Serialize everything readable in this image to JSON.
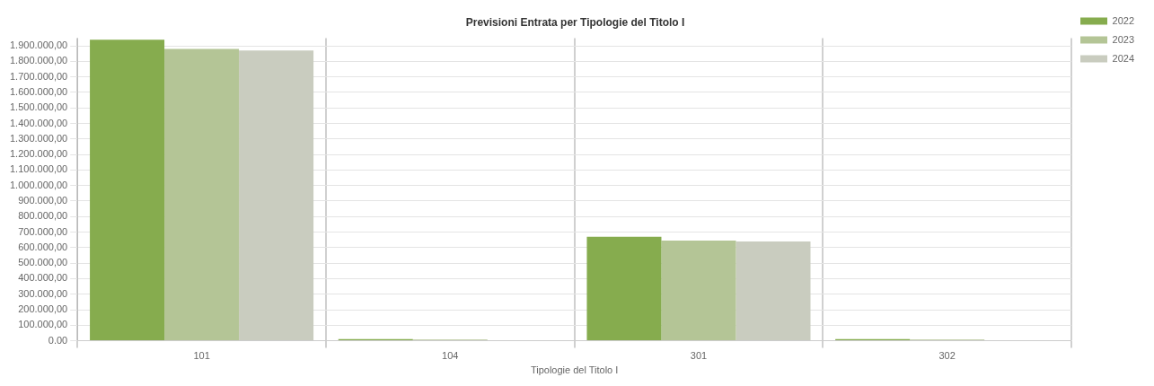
{
  "chart_data": {
    "type": "bar",
    "title": "Previsioni Entrata per Tipologie del Titolo I",
    "xlabel": "Tipologie del Titolo I",
    "categories": [
      "101",
      "104",
      "301",
      "302"
    ],
    "series": [
      {
        "name": "2022",
        "color": "#86ac4e",
        "values": [
          1940000,
          10000,
          670000,
          10000
        ]
      },
      {
        "name": "2023",
        "color": "#b4c596",
        "values": [
          1880000,
          8000,
          645000,
          8000
        ]
      },
      {
        "name": "2024",
        "color": "#c9ccbf",
        "values": [
          1870000,
          null,
          640000,
          null
        ]
      }
    ],
    "ylim": [
      0,
      1950000
    ],
    "yticks": [
      {
        "value": 0,
        "label": "0.00"
      },
      {
        "value": 100000,
        "label": "100.000,00"
      },
      {
        "value": 200000,
        "label": "200.000,00"
      },
      {
        "value": 300000,
        "label": "300.000,00"
      },
      {
        "value": 400000,
        "label": "400.000,00"
      },
      {
        "value": 500000,
        "label": "500.000,00"
      },
      {
        "value": 600000,
        "label": "600.000,00"
      },
      {
        "value": 700000,
        "label": "700.000,00"
      },
      {
        "value": 800000,
        "label": "800.000,00"
      },
      {
        "value": 900000,
        "label": "900.000,00"
      },
      {
        "value": 1000000,
        "label": "1.000.000,00"
      },
      {
        "value": 1100000,
        "label": "1.100.000,00"
      },
      {
        "value": 1200000,
        "label": "1.200.000,00"
      },
      {
        "value": 1300000,
        "label": "1.300.000,00"
      },
      {
        "value": 1400000,
        "label": "1.400.000,00"
      },
      {
        "value": 1500000,
        "label": "1.500.000,00"
      },
      {
        "value": 1600000,
        "label": "1.600.000,00"
      },
      {
        "value": 1700000,
        "label": "1.700.000,00"
      },
      {
        "value": 1800000,
        "label": "1.800.000,00"
      },
      {
        "value": 1900000,
        "label": "1.900.000,00"
      }
    ],
    "grid": true,
    "legend": "top right"
  }
}
